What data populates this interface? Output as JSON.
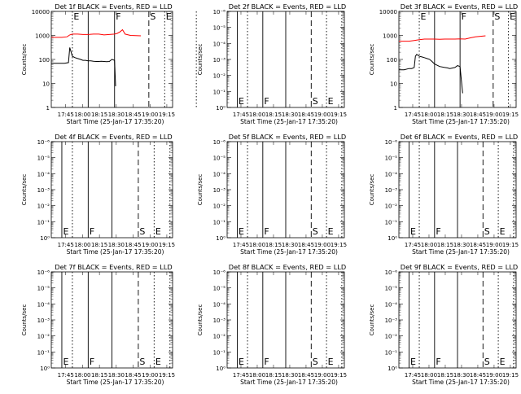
{
  "page": {
    "colors": {
      "events": "#000000",
      "lld": "#ff0000",
      "axis": "#000000",
      "background": "#ffffff"
    }
  },
  "chart_data": [
    {
      "type": "line",
      "title": "Det 1f BLACK = Events, RED = LLD",
      "xlabel": "Start Time (25-Jan-17 17:35:20)",
      "ylabel": "Counts/sec",
      "yscale": "log",
      "ylim": [
        1,
        12000
      ],
      "xlim": [
        "17:35",
        "18:21"
      ],
      "x_ticks": [
        "17:45",
        "18:00",
        "18:15",
        "18:30",
        "18:45",
        "19:00",
        "19:15"
      ],
      "y_ticks": [
        "1",
        "10",
        "100",
        "1000",
        "10000"
      ],
      "markers": [
        {
          "time": "17:43",
          "style": "dotted",
          "label": "E"
        },
        {
          "time": "17:49",
          "style": "solid",
          "label": ""
        },
        {
          "time": "17:59",
          "style": "solid",
          "label": "F"
        },
        {
          "time": "18:12",
          "style": "dashed",
          "label": "S"
        },
        {
          "time": "18:18",
          "style": "dotted",
          "label": "E"
        },
        {
          "time": "18:30",
          "style": "dotted",
          "label": ""
        }
      ],
      "series": [
        {
          "name": "Events",
          "color": "#000000",
          "x": [
            0,
            3,
            5,
            6.5,
            7,
            8,
            9,
            10,
            11,
            12,
            13,
            14,
            15,
            16,
            17,
            18,
            19,
            20,
            21,
            22,
            23,
            24,
            24.4
          ],
          "y": [
            75,
            75,
            75,
            80,
            350,
            150,
            130,
            120,
            110,
            100,
            100,
            95,
            95,
            92,
            90,
            90,
            92,
            90,
            88,
            90,
            110,
            100,
            8
          ]
        },
        {
          "name": "LLD",
          "color": "#ff0000",
          "x": [
            0,
            4,
            6,
            7,
            8,
            10,
            12,
            14,
            16,
            18,
            20,
            22,
            24,
            25,
            26,
            27,
            28,
            30,
            34
          ],
          "y": [
            950,
            950,
            1000,
            1200,
            1300,
            1300,
            1250,
            1250,
            1300,
            1300,
            1200,
            1250,
            1300,
            1400,
            1600,
            2000,
            1300,
            1150,
            1100
          ]
        }
      ]
    },
    {
      "type": "line",
      "title": "Det 2f BLACK = Events, RED = LLD",
      "xlabel": "Start Time (25-Jan-17 17:35:20)",
      "ylabel": "Counts/sec",
      "yscale": "log",
      "ylim": [
        1,
        1e-06
      ],
      "xlim": [
        "17:35",
        "18:21"
      ],
      "x_ticks": [
        "17:45",
        "18:00",
        "18:15",
        "18:30",
        "18:45",
        "19:00",
        "19:15"
      ],
      "y_ticks": [
        "10⁰",
        "10⁻¹",
        "10⁻²",
        "10⁻³",
        "10⁻⁴",
        "10⁻⁵",
        "10⁻⁶"
      ],
      "markers": [
        {
          "time": "17:39",
          "style": "solid",
          "label": "E"
        },
        {
          "time": "17:43",
          "style": "dotted",
          "label": ""
        },
        {
          "time": "17:49",
          "style": "solid",
          "label": "F"
        },
        {
          "time": "17:58",
          "style": "solid",
          "label": ""
        },
        {
          "time": "18:08",
          "style": "dashed",
          "label": "S"
        },
        {
          "time": "18:14",
          "style": "dotted",
          "label": "E"
        },
        {
          "time": "18:20",
          "style": "dotted",
          "label": ""
        }
      ],
      "series": []
    },
    {
      "type": "line",
      "title": "Det 3f BLACK = Events, RED = LLD",
      "xlabel": "Start Time (25-Jan-17 17:35:20)",
      "ylabel": "Counts/sec",
      "yscale": "log",
      "ylim": [
        1,
        12000
      ],
      "xlim": [
        "17:35",
        "18:21"
      ],
      "x_ticks": [
        "17:45",
        "18:00",
        "18:15",
        "18:30",
        "18:45",
        "19:00",
        "19:15"
      ],
      "y_ticks": [
        "1",
        "10",
        "100",
        "1000",
        "10000"
      ],
      "markers": [
        {
          "time": "17:43",
          "style": "dotted",
          "label": "E"
        },
        {
          "time": "17:49",
          "style": "solid",
          "label": ""
        },
        {
          "time": "17:59",
          "style": "solid",
          "label": "F"
        },
        {
          "time": "18:12",
          "style": "dashed",
          "label": "S"
        },
        {
          "time": "18:18",
          "style": "dotted",
          "label": "E"
        },
        {
          "time": "18:30",
          "style": "dotted",
          "label": ""
        }
      ],
      "series": [
        {
          "name": "Events",
          "color": "#000000",
          "x": [
            0,
            2,
            4,
            5,
            6,
            6.5,
            7,
            8,
            9,
            10,
            11,
            12,
            13,
            14,
            16,
            18,
            19,
            20,
            22,
            23,
            24,
            25
          ],
          "y": [
            40,
            40,
            45,
            45,
            50,
            150,
            180,
            150,
            140,
            130,
            120,
            110,
            90,
            70,
            55,
            50,
            48,
            45,
            50,
            60,
            55,
            4
          ]
        },
        {
          "name": "LLD",
          "color": "#ff0000",
          "x": [
            0,
            4,
            6,
            8,
            10,
            12,
            14,
            16,
            18,
            20,
            22,
            24,
            26,
            28,
            30,
            34
          ],
          "y": [
            650,
            650,
            700,
            750,
            800,
            800,
            800,
            780,
            800,
            800,
            800,
            820,
            800,
            900,
            1000,
            1100
          ]
        }
      ]
    },
    {
      "type": "line",
      "title": "Det 4f BLACK = Events, RED = LLD",
      "xlabel": "Start Time (25-Jan-17 17:35:20)",
      "ylabel": "Counts/sec",
      "yscale": "log",
      "ylim": [
        1,
        1e-06
      ],
      "xlim": [
        "17:35",
        "18:21"
      ],
      "x_ticks": [
        "17:45",
        "18:00",
        "18:15",
        "18:30",
        "18:45",
        "19:00",
        "19:15"
      ],
      "y_ticks": [
        "10⁰",
        "10⁻¹",
        "10⁻²",
        "10⁻³",
        "10⁻⁴",
        "10⁻⁵",
        "10⁻⁶"
      ],
      "markers": [
        {
          "time": "17:39",
          "style": "solid",
          "label": "E"
        },
        {
          "time": "17:43",
          "style": "dotted",
          "label": ""
        },
        {
          "time": "17:49",
          "style": "solid",
          "label": "F"
        },
        {
          "time": "17:58",
          "style": "solid",
          "label": ""
        },
        {
          "time": "18:08",
          "style": "dashed",
          "label": "S"
        },
        {
          "time": "18:14",
          "style": "dotted",
          "label": "E"
        },
        {
          "time": "18:20",
          "style": "dotted",
          "label": ""
        }
      ],
      "series": []
    },
    {
      "type": "line",
      "title": "Det 5f BLACK = Events, RED = LLD",
      "xlabel": "Start Time (25-Jan-17 17:35:20)",
      "ylabel": "Counts/sec",
      "yscale": "log",
      "ylim": [
        1,
        1e-06
      ],
      "xlim": [
        "17:35",
        "18:21"
      ],
      "x_ticks": [
        "17:45",
        "18:00",
        "18:15",
        "18:30",
        "18:45",
        "19:00",
        "19:15"
      ],
      "y_ticks": [
        "10⁰",
        "10⁻¹",
        "10⁻²",
        "10⁻³",
        "10⁻⁴",
        "10⁻⁵",
        "10⁻⁶"
      ],
      "markers": [
        {
          "time": "17:39",
          "style": "solid",
          "label": "E"
        },
        {
          "time": "17:43",
          "style": "dotted",
          "label": ""
        },
        {
          "time": "17:49",
          "style": "solid",
          "label": "F"
        },
        {
          "time": "17:58",
          "style": "solid",
          "label": ""
        },
        {
          "time": "18:08",
          "style": "dashed",
          "label": "S"
        },
        {
          "time": "18:14",
          "style": "dotted",
          "label": "E"
        },
        {
          "time": "18:20",
          "style": "dotted",
          "label": ""
        }
      ],
      "series": []
    },
    {
      "type": "line",
      "title": "Det 6f BLACK = Events, RED = LLD",
      "xlabel": "Start Time (25-Jan-17 17:35:20)",
      "ylabel": "Counts/sec",
      "yscale": "log",
      "ylim": [
        1,
        1e-06
      ],
      "xlim": [
        "17:35",
        "18:21"
      ],
      "x_ticks": [
        "17:45",
        "18:00",
        "18:15",
        "18:30",
        "18:45",
        "19:00",
        "19:15"
      ],
      "y_ticks": [
        "10⁰",
        "10⁻¹",
        "10⁻²",
        "10⁻³",
        "10⁻⁴",
        "10⁻⁵",
        "10⁻⁶"
      ],
      "markers": [
        {
          "time": "17:39",
          "style": "solid",
          "label": "E"
        },
        {
          "time": "17:43",
          "style": "dotted",
          "label": ""
        },
        {
          "time": "17:49",
          "style": "solid",
          "label": "F"
        },
        {
          "time": "17:58",
          "style": "solid",
          "label": ""
        },
        {
          "time": "18:08",
          "style": "dashed",
          "label": "S"
        },
        {
          "time": "18:14",
          "style": "dotted",
          "label": "E"
        },
        {
          "time": "18:20",
          "style": "dotted",
          "label": ""
        }
      ],
      "series": []
    },
    {
      "type": "line",
      "title": "Det 7f BLACK = Events, RED = LLD",
      "xlabel": "Start Time (25-Jan-17 17:35:20)",
      "ylabel": "Counts/sec",
      "yscale": "log",
      "ylim": [
        1,
        1e-06
      ],
      "xlim": [
        "17:35",
        "18:21"
      ],
      "x_ticks": [
        "17:45",
        "18:00",
        "18:15",
        "18:30",
        "18:45",
        "19:00",
        "19:15"
      ],
      "y_ticks": [
        "10⁰",
        "10⁻¹",
        "10⁻²",
        "10⁻³",
        "10⁻⁴",
        "10⁻⁵",
        "10⁻⁶"
      ],
      "markers": [
        {
          "time": "17:39",
          "style": "solid",
          "label": "E"
        },
        {
          "time": "17:43",
          "style": "dotted",
          "label": ""
        },
        {
          "time": "17:49",
          "style": "solid",
          "label": "F"
        },
        {
          "time": "17:58",
          "style": "solid",
          "label": ""
        },
        {
          "time": "18:08",
          "style": "dashed",
          "label": "S"
        },
        {
          "time": "18:14",
          "style": "dotted",
          "label": "E"
        },
        {
          "time": "18:20",
          "style": "dotted",
          "label": ""
        }
      ],
      "series": []
    },
    {
      "type": "line",
      "title": "Det 8f BLACK = Events, RED = LLD",
      "xlabel": "Start Time (25-Jan-17 17:35:20)",
      "ylabel": "Counts/sec",
      "yscale": "log",
      "ylim": [
        1,
        1e-06
      ],
      "xlim": [
        "17:35",
        "18:21"
      ],
      "x_ticks": [
        "17:45",
        "18:00",
        "18:15",
        "18:30",
        "18:45",
        "19:00",
        "19:15"
      ],
      "y_ticks": [
        "10⁰",
        "10⁻¹",
        "10⁻²",
        "10⁻³",
        "10⁻⁴",
        "10⁻⁵",
        "10⁻⁶"
      ],
      "markers": [
        {
          "time": "17:39",
          "style": "solid",
          "label": "E"
        },
        {
          "time": "17:43",
          "style": "dotted",
          "label": ""
        },
        {
          "time": "17:49",
          "style": "solid",
          "label": "F"
        },
        {
          "time": "17:58",
          "style": "solid",
          "label": ""
        },
        {
          "time": "18:08",
          "style": "dashed",
          "label": "S"
        },
        {
          "time": "18:14",
          "style": "dotted",
          "label": "E"
        },
        {
          "time": "18:20",
          "style": "dotted",
          "label": ""
        }
      ],
      "series": []
    },
    {
      "type": "line",
      "title": "Det 9f BLACK = Events, RED = LLD",
      "xlabel": "Start Time (25-Jan-17 17:35:20)",
      "ylabel": "Counts/sec",
      "yscale": "log",
      "ylim": [
        1,
        1e-06
      ],
      "xlim": [
        "17:35",
        "18:21"
      ],
      "x_ticks": [
        "17:45",
        "18:00",
        "18:15",
        "18:30",
        "18:45",
        "19:00",
        "19:15"
      ],
      "y_ticks": [
        "10⁰",
        "10⁻¹",
        "10⁻²",
        "10⁻³",
        "10⁻⁴",
        "10⁻⁵",
        "10⁻⁶"
      ],
      "markers": [
        {
          "time": "17:39",
          "style": "solid",
          "label": "E"
        },
        {
          "time": "17:43",
          "style": "dotted",
          "label": ""
        },
        {
          "time": "17:49",
          "style": "solid",
          "label": "F"
        },
        {
          "time": "17:58",
          "style": "solid",
          "label": ""
        },
        {
          "time": "18:08",
          "style": "dashed",
          "label": "S"
        },
        {
          "time": "18:14",
          "style": "dotted",
          "label": "E"
        },
        {
          "time": "18:20",
          "style": "dotted",
          "label": ""
        }
      ],
      "series": []
    }
  ]
}
